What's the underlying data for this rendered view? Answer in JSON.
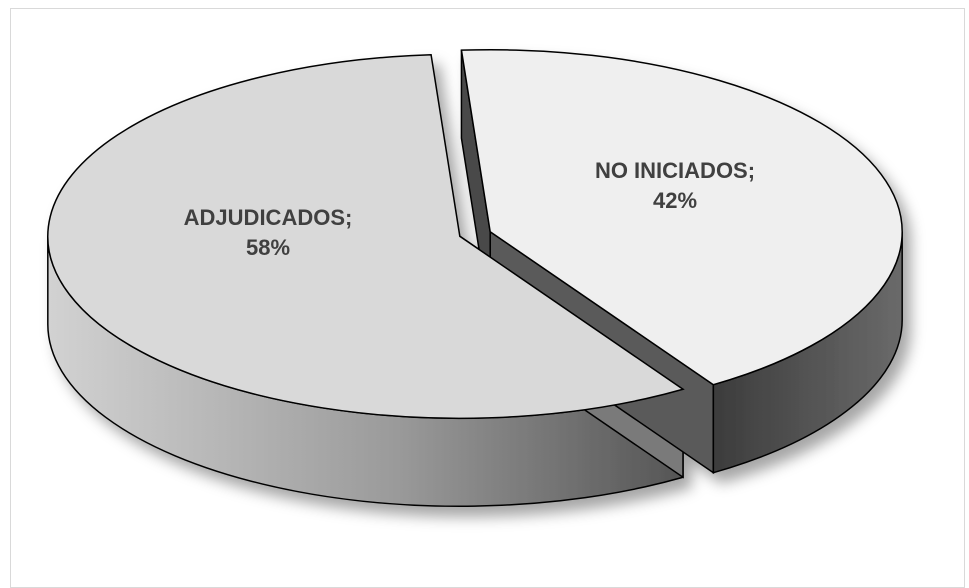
{
  "chart_data": {
    "type": "pie",
    "style": "3d-exploded",
    "slices": [
      {
        "label": "ADJUDICADOS",
        "value": 58,
        "display": [
          "ADJUDICADOS;",
          "58%"
        ]
      },
      {
        "label": "NO INICIADOS",
        "value": 42,
        "display": [
          "NO INICIADOS;",
          "42%"
        ]
      }
    ],
    "colors": {
      "top_main": "#d9d9d9",
      "top_minor": "#efefef",
      "side_light": "#c4c4c4",
      "side_dark": "#4a4a4a",
      "outline": "#000000",
      "label": "#404040"
    }
  }
}
